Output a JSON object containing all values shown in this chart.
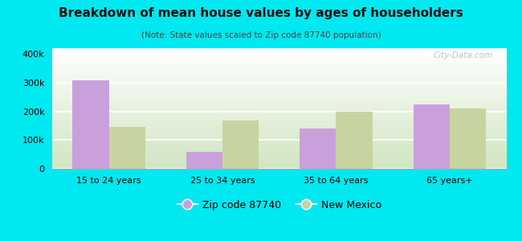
{
  "title": "Breakdown of mean house values by ages of householders",
  "subtitle": "(Note: State values scaled to Zip code 87740 population)",
  "categories": [
    "15 to 24 years",
    "25 to 34 years",
    "35 to 64 years",
    "65 years+"
  ],
  "zip_values": [
    307000,
    60000,
    140000,
    225000
  ],
  "state_values": [
    145000,
    168000,
    198000,
    210000
  ],
  "zip_color": "#c9a0dc",
  "state_color": "#c8d4a0",
  "background_color": "#00e8f0",
  "ylim": [
    0,
    420000
  ],
  "yticks": [
    0,
    100000,
    200000,
    300000,
    400000
  ],
  "legend_zip_label": "Zip code 87740",
  "legend_state_label": "New Mexico",
  "watermark": "City-Data.com",
  "title_fontsize": 11,
  "subtitle_fontsize": 7.5,
  "tick_fontsize": 8
}
